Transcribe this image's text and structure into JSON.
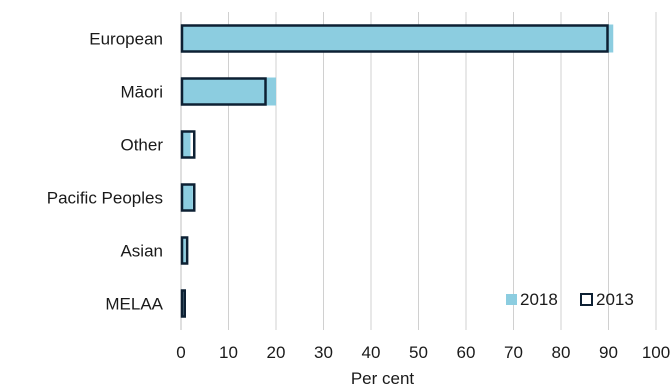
{
  "chart_data": {
    "type": "bar",
    "orientation": "horizontal",
    "categories": [
      "European",
      "Māori",
      "Other",
      "Pacific Peoples",
      "Asian",
      "MELAA"
    ],
    "series": [
      {
        "name": "2018",
        "values": [
          91,
          20,
          2,
          2.5,
          1,
          0.5
        ],
        "style": "filled",
        "color": "#8ccde0"
      },
      {
        "name": "2013",
        "values": [
          90,
          18,
          3,
          3,
          1.5,
          1
        ],
        "style": "outline",
        "color": "#0d2033"
      }
    ],
    "xlabel": "Per cent",
    "ylabel": "",
    "xlim": [
      0,
      100
    ],
    "xticks": [
      0,
      10,
      20,
      30,
      40,
      50,
      60,
      70,
      80,
      90,
      100
    ],
    "grid": "vertical",
    "legend": "bottom-right"
  }
}
